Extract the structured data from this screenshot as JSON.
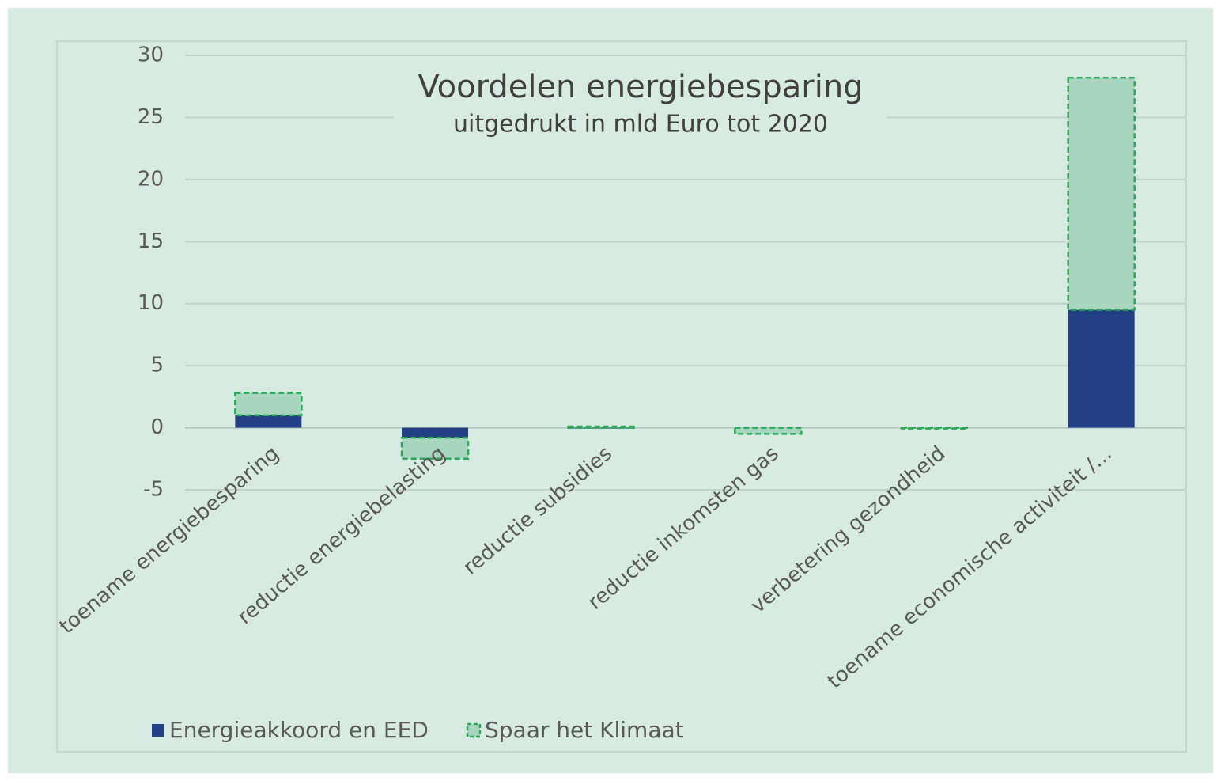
{
  "chart_data": {
    "type": "stacked_bar",
    "title": "Voordelen energiebesparing",
    "subtitle": "uitgedrukt in mld Euro tot 2020",
    "categories": [
      "toename energiebesparing",
      "reductie energiebelasting",
      "reductie subsidies",
      "reductie inkomsten gas",
      "verbetering gezondheid",
      "toename economische activiteit  /..."
    ],
    "series": [
      {
        "name": "Energieakkoord en EED",
        "color": "#233f85",
        "values": [
          1.0,
          -0.8,
          0,
          0,
          0,
          9.5
        ]
      },
      {
        "name": "Spaar het Klimaat",
        "color": "#a7d5bd",
        "values": [
          1.8,
          -1.7,
          0.1,
          -0.5,
          0,
          18.7
        ]
      }
    ],
    "ylim": [
      -5,
      30
    ],
    "yticks": [
      -5,
      0,
      5,
      10,
      15,
      20,
      25,
      30
    ],
    "grid": true,
    "legend": "bottom"
  }
}
